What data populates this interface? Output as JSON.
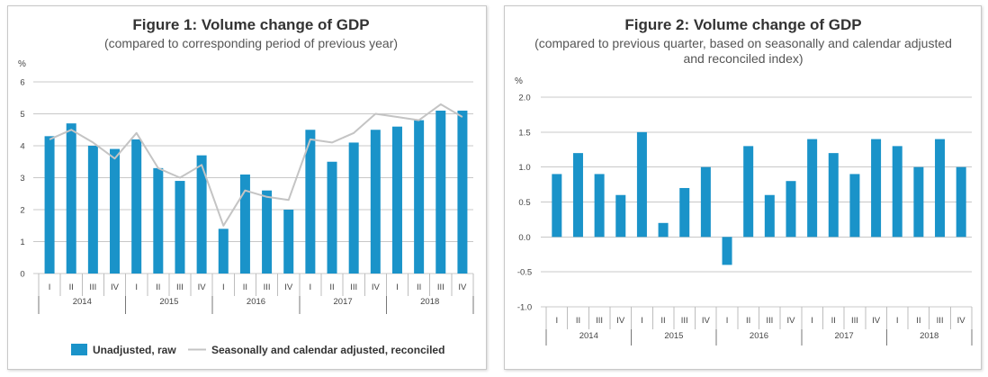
{
  "chart_data": [
    {
      "type": "bar",
      "title": "Figure 1: Volume change of GDP",
      "subtitle": "(compared to corresponding period of previous year)",
      "ylabel": "%",
      "ylim": [
        0,
        6
      ],
      "yticks": [
        "0",
        "1",
        "2",
        "3",
        "4",
        "5",
        "6"
      ],
      "categories": [
        "I",
        "II",
        "III",
        "IV",
        "I",
        "II",
        "III",
        "IV",
        "I",
        "II",
        "III",
        "IV",
        "I",
        "II",
        "III",
        "IV",
        "I",
        "II",
        "III",
        "IV"
      ],
      "groups": [
        "2014",
        "2015",
        "2016",
        "2017",
        "2018"
      ],
      "series": [
        {
          "name": "Unadjusted, raw",
          "type": "bar",
          "color": "#1a93c9",
          "values": [
            4.3,
            4.7,
            4.0,
            3.9,
            4.2,
            3.3,
            2.9,
            3.7,
            1.4,
            3.1,
            2.6,
            2.0,
            4.5,
            3.5,
            4.1,
            4.5,
            4.6,
            4.8,
            5.1,
            5.1
          ]
        },
        {
          "name": "Seasonally and calendar adjusted, reconciled",
          "type": "line",
          "color": "#c4c4c4",
          "values": [
            4.2,
            4.5,
            4.1,
            3.6,
            4.4,
            3.3,
            3.0,
            3.4,
            1.5,
            2.6,
            2.4,
            2.3,
            4.2,
            4.1,
            4.4,
            5.0,
            4.9,
            4.8,
            5.3,
            4.9
          ]
        }
      ],
      "legend": "bottom",
      "grid": true
    },
    {
      "type": "bar",
      "title": "Figure 2: Volume change of GDP",
      "subtitle": [
        "(compared to previous quarter, based on seasonally and calendar adjusted",
        "and reconciled index)"
      ],
      "ylabel": "%",
      "ylim": [
        -1.0,
        2.0
      ],
      "yticks": [
        "2.0",
        "1.5",
        "1.0",
        "0.5",
        "0.0",
        "-0.5",
        "-1.0"
      ],
      "categories": [
        "I",
        "II",
        "III",
        "IV",
        "I",
        "II",
        "III",
        "IV",
        "I",
        "II",
        "III",
        "IV",
        "I",
        "II",
        "III",
        "IV",
        "I",
        "II",
        "III",
        "IV"
      ],
      "groups": [
        "2014",
        "2015",
        "2016",
        "2017",
        "2018"
      ],
      "series": [
        {
          "name": "",
          "type": "bar",
          "color": "#1a93c9",
          "values": [
            0.9,
            1.2,
            0.9,
            0.6,
            1.5,
            0.2,
            0.7,
            1.0,
            -0.4,
            1.3,
            0.6,
            0.8,
            1.4,
            1.2,
            0.9,
            1.4,
            1.3,
            1.0,
            1.4,
            1.0
          ]
        }
      ],
      "grid": true
    }
  ]
}
